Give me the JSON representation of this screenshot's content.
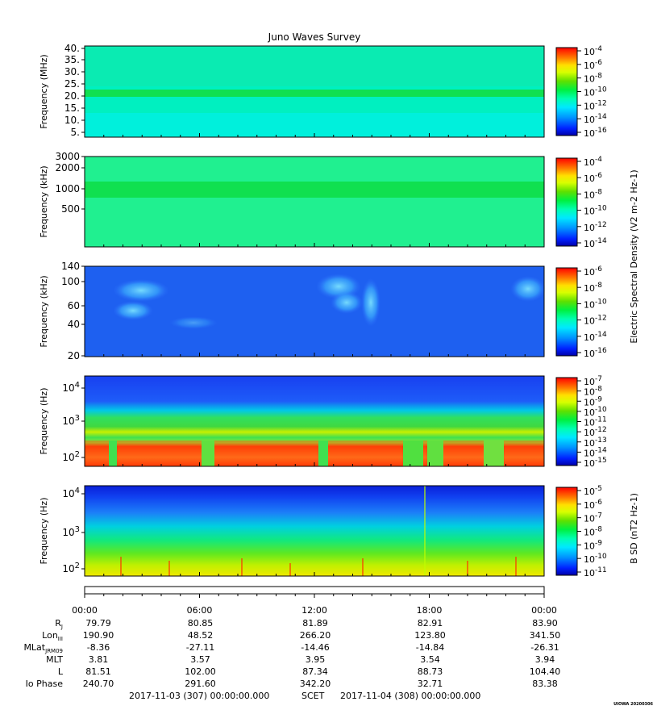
{
  "title": "Juno Waves Survey",
  "colors": {
    "colormap": [
      "#0000a8",
      "#0014ff",
      "#0060ff",
      "#00b4ff",
      "#00f0f0",
      "#00ffb0",
      "#00f050",
      "#3ce000",
      "#a0ff00",
      "#ffff00",
      "#ffb400",
      "#ff6000",
      "#ff0000"
    ]
  },
  "chart_data": [
    {
      "type": "heatmap",
      "id": "hfr-high",
      "ylabel": "Frequency (MHz)",
      "yticks": [
        "40.",
        "35.",
        "30.",
        "25.",
        "20.",
        "15.",
        "10.",
        "5."
      ],
      "yscale": "linear",
      "ylim": [
        3,
        41
      ],
      "colorbar_ticks": [
        "10-4",
        "10-6",
        "10-8",
        "10-10",
        "10-12",
        "10-14",
        "10-16"
      ],
      "features": "uniform cyan-green background with a horizontal green band near 21 MHz"
    },
    {
      "type": "heatmap",
      "id": "hfr-low",
      "ylabel": "Frequency (kHz)",
      "yticks": [
        "3000",
        "2000",
        "1000",
        "500"
      ],
      "yscale": "log",
      "ylim": [
        140,
        3000
      ],
      "colorbar_ticks": [
        "10-4",
        "10-6",
        "10-8",
        "10-10",
        "10-12",
        "10-14"
      ],
      "colorbar_label": "Electric Spectral Density (V2 m-2 Hz-1)",
      "features": "uniform green background with a brighter green band near 1000 kHz"
    },
    {
      "type": "heatmap",
      "id": "lfr-high",
      "ylabel": "Frequency (kHz)",
      "yticks": [
        "140",
        "100",
        "60",
        "40",
        "20"
      ],
      "yscale": "log",
      "ylim": [
        20,
        140
      ],
      "colorbar_ticks": [
        "10-6",
        "10-8",
        "10-10",
        "10-12",
        "10-14",
        "10-16"
      ],
      "features": "blue background with cyan emission patches near 03:00, 14:00 and 23:00"
    },
    {
      "type": "heatmap",
      "id": "lfr-low",
      "ylabel": "Frequency (Hz)",
      "yticks": [
        "10^4",
        "10^3",
        "10^2"
      ],
      "yscale": "log",
      "ylim": [
        50,
        20000
      ],
      "colorbar_ticks": [
        "10-7",
        "10-8",
        "10-9",
        "10-10",
        "10-11",
        "10-12",
        "10-13",
        "10-14",
        "10-15"
      ],
      "features": "blue above ~10^3 Hz, green/yellow band near 500 Hz, red/orange intense emission below ~200 Hz"
    },
    {
      "type": "heatmap",
      "id": "magnetic",
      "ylabel": "Frequency (Hz)",
      "yticks": [
        "10^4",
        "10^3",
        "10^2"
      ],
      "yscale": "log",
      "ylim": [
        50,
        20000
      ],
      "colorbar_ticks": [
        "10-5",
        "10-6",
        "10-7",
        "10-8",
        "10-9",
        "10-10",
        "10-11"
      ],
      "colorbar_label": "B SD (nT2 Hz-1)",
      "features": "blue at high frequency grading to cyan, green and yellow at low frequency with short red spikes"
    }
  ],
  "ephemeris": {
    "times": [
      "00:00",
      "06:00",
      "12:00",
      "18:00",
      "00:00"
    ],
    "rows": [
      {
        "label": "R",
        "sub": "J",
        "values": [
          "79.79",
          "80.85",
          "81.89",
          "82.91",
          "83.90"
        ]
      },
      {
        "label": "Lon",
        "sub": "III",
        "values": [
          "190.90",
          "48.52",
          "266.20",
          "123.80",
          "341.50"
        ]
      },
      {
        "label": "MLat",
        "sub": "JRM09",
        "values": [
          "-8.36",
          "-27.11",
          "-14.46",
          "-14.84",
          "-26.31"
        ]
      },
      {
        "label": "MLT",
        "sub": "",
        "values": [
          "3.81",
          "3.57",
          "3.95",
          "3.54",
          "3.94"
        ]
      },
      {
        "label": "L",
        "sub": "",
        "values": [
          "81.51",
          "102.00",
          "87.34",
          "88.73",
          "104.40"
        ]
      },
      {
        "label": "Io Phase",
        "sub": "",
        "values": [
          "240.70",
          "291.60",
          "342.20",
          "32.71",
          "83.38"
        ]
      }
    ]
  },
  "footer": {
    "start": "2017-11-03 (307) 00:00:00.000",
    "scet": "SCET",
    "end": "2017-11-04 (308) 00:00:00.000",
    "stamp": "UIOWA 20200306"
  }
}
